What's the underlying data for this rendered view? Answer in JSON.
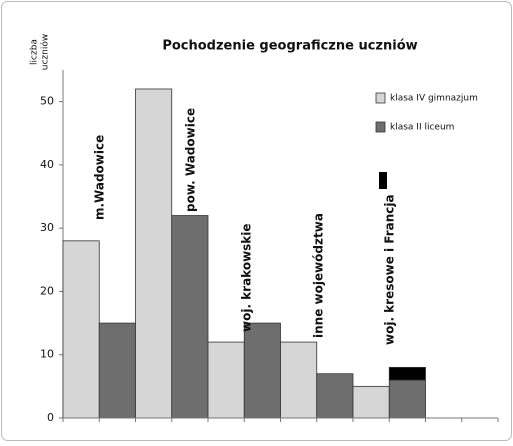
{
  "chart_data": {
    "type": "bar",
    "title": "Pochodzenie geograficzne uczniów",
    "ylabel": [
      "liczba",
      "uczniów"
    ],
    "categories": [
      "m.Wadowice",
      "pow. Wadowice",
      "woj. krakowskie",
      "inne województwa",
      "woj. kresowe i Francja"
    ],
    "series": [
      {
        "name": "klasa IV gimnazjum",
        "color": "#d6d6d6",
        "values": [
          28,
          52,
          12,
          12,
          5
        ]
      },
      {
        "name": "klasa II liceum",
        "color": "#6e6e6e",
        "values": [
          15,
          32,
          15,
          7,
          6
        ]
      },
      {
        "color": "#000000",
        "stacked": true,
        "values": [
          null,
          null,
          null,
          null,
          2
        ]
      }
    ],
    "ylim": [
      0,
      55
    ],
    "yticks": [
      0,
      10,
      20,
      30,
      40,
      50
    ],
    "grid": false
  }
}
